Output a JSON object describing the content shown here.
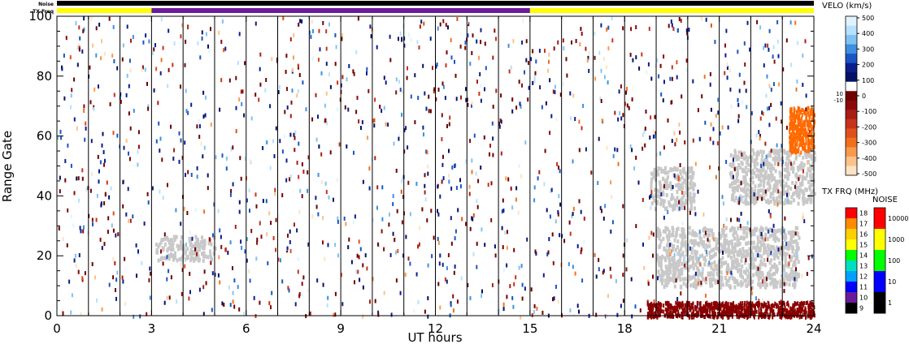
{
  "strip": {
    "noise_label": "Noise",
    "txfreq_label": "TX Freq",
    "segments": [
      {
        "from": 0,
        "to": 3,
        "color": "#ffff00"
      },
      {
        "from": 3,
        "to": 15,
        "color": "#6a1b9a"
      },
      {
        "from": 15,
        "to": 24,
        "color": "#ffff00"
      }
    ]
  },
  "chart_data": {
    "type": "heatmap",
    "xlabel": "UT hours",
    "ylabel": "Range Gate",
    "x_ticks": [
      "0",
      "3",
      "6",
      "9",
      "12",
      "15",
      "18",
      "21",
      "24"
    ],
    "y_ticks": [
      "0",
      "20",
      "40",
      "60",
      "80",
      "100"
    ],
    "xlim": [
      0,
      24
    ],
    "ylim": [
      0,
      100
    ],
    "hour_marker_lines": [
      1,
      2,
      3,
      4,
      5,
      6,
      7,
      8,
      9,
      10,
      11,
      12,
      13,
      14,
      15,
      16,
      17,
      18,
      19,
      20,
      21,
      22,
      23
    ],
    "ground_scatter_color": "#c8c8c8",
    "ground_scatter_regions": [
      {
        "x": [
          3.1,
          5.0
        ],
        "y": [
          19,
          27
        ]
      },
      {
        "x": [
          18.8,
          20.2
        ],
        "y": [
          36,
          50
        ]
      },
      {
        "x": [
          19.0,
          23.5
        ],
        "y": [
          10,
          30
        ]
      },
      {
        "x": [
          21.3,
          24.0
        ],
        "y": [
          38,
          56
        ]
      }
    ],
    "dense_echo_regions": [
      {
        "x": [
          18.7,
          24.0
        ],
        "y": [
          0,
          5
        ],
        "color": "#8b0000"
      },
      {
        "x": [
          23.2,
          24.0
        ],
        "y": [
          55,
          70
        ],
        "color": "#ff6a00"
      }
    ],
    "velocity_colorbar": {
      "title": "VELO (km/s)",
      "ticks": [
        "500",
        "400",
        "300",
        "200",
        "100",
        "0",
        "-100",
        "-200",
        "-300",
        "-400",
        "-500"
      ],
      "zero_band_labels": [
        "10",
        "-10"
      ],
      "colors": [
        "#dff4ff",
        "#b6e1ff",
        "#7ec3f2",
        "#3d8fe0",
        "#1a55c4",
        "#0a1e8c",
        "#051066",
        "#ffffff",
        "#6e0000",
        "#8b0a0a",
        "#a81e12",
        "#c8321a",
        "#e0501c",
        "#f0701e",
        "#f89a4a",
        "#fcc28a",
        "#fde3c4"
      ]
    },
    "txfreq_colorbar": {
      "title": "TX FRQ (MHz)",
      "ticks": [
        "18",
        "17",
        "16",
        "15",
        "14",
        "13",
        "12",
        "11",
        "10",
        "9"
      ],
      "colors": [
        "#ff0000",
        "#ff8c00",
        "#ffd000",
        "#ffff00",
        "#00ff00",
        "#00e0c0",
        "#00a0ff",
        "#0000ff",
        "#6a1b9a",
        "#000000"
      ]
    },
    "noise_colorbar": {
      "title": "NOISE",
      "ticks": [
        "10000",
        "1000",
        "100",
        "10",
        "1"
      ],
      "colors": [
        "#ff0000",
        "#ffff00",
        "#00ff00",
        "#0000ff",
        "#000000"
      ]
    }
  }
}
